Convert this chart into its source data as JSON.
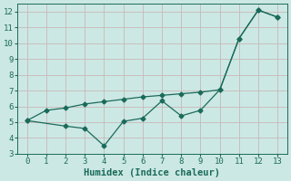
{
  "line1_x": [
    0,
    1,
    2,
    3,
    4,
    5,
    6,
    7,
    8,
    9,
    10,
    11,
    12,
    13
  ],
  "line1_y": [
    5.1,
    5.75,
    5.9,
    6.15,
    6.3,
    6.45,
    6.6,
    6.7,
    6.8,
    6.9,
    7.05,
    10.3,
    12.1,
    11.65
  ],
  "line2_x": [
    0,
    2,
    3,
    4,
    5,
    6,
    7,
    8,
    9,
    10,
    11,
    12,
    13
  ],
  "line2_y": [
    5.1,
    4.75,
    4.6,
    3.5,
    5.05,
    5.25,
    6.35,
    5.4,
    5.75,
    7.05,
    10.3,
    12.1,
    11.65
  ],
  "color": "#1a6b5a",
  "bg_color": "#cce8e4",
  "grid_color": "#b0d5d0",
  "xlabel": "Humidex (Indice chaleur)",
  "xlim": [
    -0.5,
    13.5
  ],
  "ylim": [
    3,
    12.5
  ],
  "xticks": [
    0,
    1,
    2,
    3,
    4,
    5,
    6,
    7,
    8,
    9,
    10,
    11,
    12,
    13
  ],
  "yticks": [
    3,
    4,
    5,
    6,
    7,
    8,
    9,
    10,
    11,
    12
  ],
  "tick_fontsize": 6.5,
  "label_fontsize": 7.5,
  "linewidth": 0.9,
  "markersize": 2.5
}
